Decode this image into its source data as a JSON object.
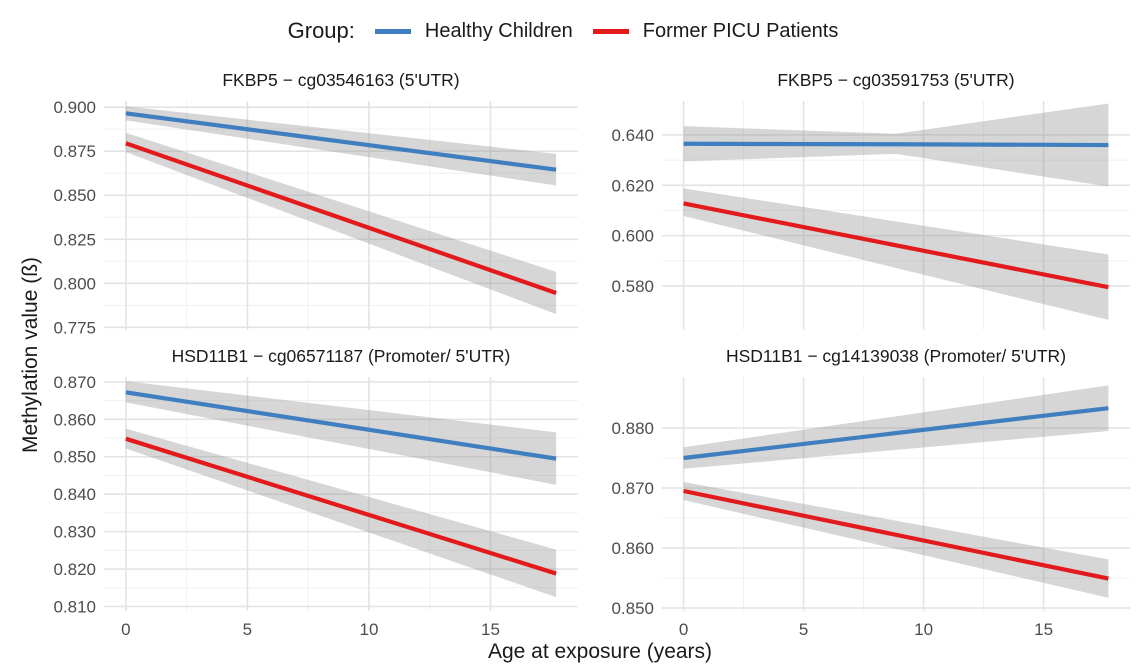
{
  "legend": {
    "title": "Group:",
    "entries": [
      {
        "label": "Healthy Children",
        "color": "#3f7fbf"
      },
      {
        "label": "Former PICU Patients",
        "color": "#e31a1c"
      }
    ]
  },
  "axes": {
    "xlabel": "Age at exposure (years)",
    "ylabel": "Methylation value (ß)"
  },
  "chart_data": [
    {
      "type": "line",
      "title": "FKBP5 − cg03546163 (5'UTR)",
      "xlim": [
        -0.9,
        18.6
      ],
      "x_ticks": [
        0,
        5,
        10,
        15
      ],
      "x_tick_labels": [
        "0",
        "5",
        "10",
        "15"
      ],
      "ylim": [
        0.7735,
        0.9035
      ],
      "y_ticks": [
        0.775,
        0.8,
        0.825,
        0.85,
        0.875,
        0.9
      ],
      "y_tick_labels": [
        "0.775",
        "0.800",
        "0.825",
        "0.850",
        "0.875",
        "0.900"
      ],
      "grid": true,
      "series": [
        {
          "name": "Healthy Children",
          "x": [
            0,
            17.7
          ],
          "y": [
            0.8965,
            0.8645
          ],
          "ci_lower": [
            0.8925,
            0.8555
          ],
          "ci_upper": [
            0.9005,
            0.8735
          ]
        },
        {
          "name": "Former PICU Patients",
          "x": [
            0,
            17.7
          ],
          "y": [
            0.8795,
            0.7945
          ],
          "ci_lower": [
            0.8745,
            0.7825
          ],
          "ci_upper": [
            0.8855,
            0.8065
          ]
        }
      ]
    },
    {
      "type": "line",
      "title": "FKBP5 − cg03591753 (5'UTR)",
      "xlim": [
        -0.9,
        18.6
      ],
      "x_ticks": [
        0,
        5,
        10,
        15
      ],
      "x_tick_labels": [
        "0",
        "5",
        "10",
        "15"
      ],
      "ylim": [
        0.5625,
        0.6535
      ],
      "y_ticks": [
        0.58,
        0.6,
        0.62,
        0.64
      ],
      "y_tick_labels": [
        "0.580",
        "0.600",
        "0.620",
        "0.640"
      ],
      "grid": true,
      "series": [
        {
          "name": "Healthy Children",
          "x": [
            0,
            8.85,
            17.7
          ],
          "y": [
            0.6365,
            0.6363,
            0.636
          ],
          "ci_lower": [
            0.6295,
            0.6325,
            0.6195
          ],
          "ci_upper": [
            0.6435,
            0.6405,
            0.6525
          ]
        },
        {
          "name": "Former PICU Patients",
          "x": [
            0,
            17.7
          ],
          "y": [
            0.6128,
            0.5795
          ],
          "ci_lower": [
            0.6078,
            0.5665
          ],
          "ci_upper": [
            0.6188,
            0.5925
          ]
        }
      ]
    },
    {
      "type": "line",
      "title": "HSD11B1 − cg06571187 (Promoter/ 5'UTR)",
      "xlim": [
        -0.9,
        18.6
      ],
      "x_ticks": [
        0,
        5,
        10,
        15
      ],
      "x_tick_labels": [
        "0",
        "5",
        "10",
        "15"
      ],
      "ylim": [
        0.8088,
        0.8713
      ],
      "y_ticks": [
        0.81,
        0.82,
        0.83,
        0.84,
        0.85,
        0.86,
        0.87
      ],
      "y_tick_labels": [
        "0.810",
        "0.820",
        "0.830",
        "0.840",
        "0.850",
        "0.860",
        "0.870"
      ],
      "grid": true,
      "series": [
        {
          "name": "Healthy Children",
          "x": [
            0,
            17.7
          ],
          "y": [
            0.8672,
            0.8495
          ],
          "ci_lower": [
            0.8645,
            0.8425
          ],
          "ci_upper": [
            0.8702,
            0.8565
          ]
        },
        {
          "name": "Former PICU Patients",
          "x": [
            0,
            17.7
          ],
          "y": [
            0.8548,
            0.8188
          ],
          "ci_lower": [
            0.8522,
            0.8125
          ],
          "ci_upper": [
            0.8575,
            0.8252
          ]
        }
      ]
    },
    {
      "type": "line",
      "title": "HSD11B1 − cg14139038 (Promoter/ 5'UTR)",
      "xlim": [
        -0.9,
        18.6
      ],
      "x_ticks": [
        0,
        5,
        10,
        15
      ],
      "x_tick_labels": [
        "0",
        "5",
        "10",
        "15"
      ],
      "ylim": [
        0.8495,
        0.8885
      ],
      "y_ticks": [
        0.85,
        0.86,
        0.87,
        0.88
      ],
      "y_tick_labels": [
        "0.850",
        "0.860",
        "0.870",
        "0.880"
      ],
      "grid": true,
      "series": [
        {
          "name": "Healthy Children",
          "x": [
            0,
            17.7
          ],
          "y": [
            0.875,
            0.8833
          ],
          "ci_lower": [
            0.8732,
            0.8795
          ],
          "ci_upper": [
            0.8768,
            0.8871
          ]
        },
        {
          "name": "Former PICU Patients",
          "x": [
            0,
            17.7
          ],
          "y": [
            0.8695,
            0.8549
          ],
          "ci_lower": [
            0.868,
            0.8517
          ],
          "ci_upper": [
            0.871,
            0.8581
          ]
        }
      ]
    }
  ]
}
